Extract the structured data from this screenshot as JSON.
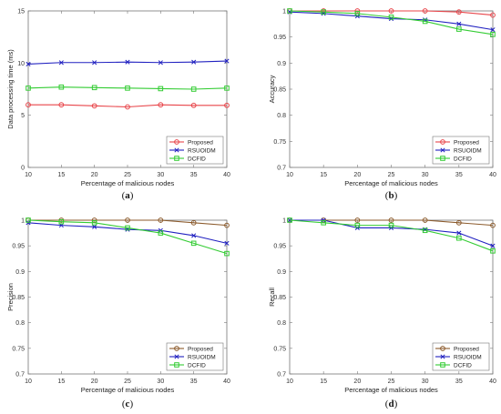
{
  "chart_data": [
    {
      "type": "line",
      "caption": "a",
      "xlabel": "Percentage of malicious nodes",
      "ylabel": "Data processing time (ms)",
      "x": [
        10,
        15,
        20,
        25,
        30,
        35,
        40
      ],
      "xticks": [
        "10",
        "15",
        "20",
        "25",
        "30",
        "35",
        "40"
      ],
      "ylim": [
        0,
        15
      ],
      "yticks": [
        "0",
        "5",
        "10",
        "15"
      ],
      "ytick_values": [
        0,
        5,
        10,
        15
      ],
      "legend_position": "bottom-right",
      "series": [
        {
          "name": "Proposed",
          "color": "#e8454a",
          "marker": "circle",
          "values": [
            6.0,
            6.0,
            5.9,
            5.8,
            6.0,
            5.95,
            5.95
          ]
        },
        {
          "name": "RSUOIDM",
          "color": "#2020c0",
          "marker": "x",
          "values": [
            9.9,
            10.05,
            10.05,
            10.1,
            10.05,
            10.1,
            10.2
          ]
        },
        {
          "name": "DCFID",
          "color": "#33cc33",
          "marker": "square",
          "values": [
            7.6,
            7.7,
            7.65,
            7.6,
            7.55,
            7.5,
            7.6
          ]
        }
      ]
    },
    {
      "type": "line",
      "caption": "b",
      "xlabel": "Percentage of malicious nodes",
      "ylabel": "Accuracy",
      "x": [
        10,
        15,
        20,
        25,
        30,
        35,
        40
      ],
      "xticks": [
        "10",
        "15",
        "20",
        "25",
        "30",
        "35",
        "40"
      ],
      "ylim": [
        0.7,
        1.0
      ],
      "yticks": [
        "0.7",
        "0.75",
        "0.8",
        "0.85",
        "0.9",
        "0.95",
        "1"
      ],
      "ytick_values": [
        0.7,
        0.75,
        0.8,
        0.85,
        0.9,
        0.95,
        1.0
      ],
      "legend_position": "bottom-right",
      "series": [
        {
          "name": "Proposed",
          "color": "#e8454a",
          "marker": "circle",
          "values": [
            1.0,
            1.0,
            1.0,
            1.0,
            1.0,
            0.998,
            0.992
          ]
        },
        {
          "name": "RSUOIDM",
          "color": "#2020c0",
          "marker": "x",
          "values": [
            0.998,
            0.995,
            0.99,
            0.985,
            0.983,
            0.975,
            0.964
          ]
        },
        {
          "name": "DCFID",
          "color": "#33cc33",
          "marker": "square",
          "values": [
            1.0,
            0.998,
            0.995,
            0.988,
            0.98,
            0.965,
            0.955
          ]
        }
      ]
    },
    {
      "type": "line",
      "caption": "c",
      "xlabel": "Percentage of malicious nodes",
      "ylabel": "Precision",
      "x": [
        10,
        15,
        20,
        25,
        30,
        35,
        40
      ],
      "xticks": [
        "10",
        "15",
        "20",
        "25",
        "30",
        "35",
        "40"
      ],
      "ylim": [
        0.7,
        1.0
      ],
      "yticks": [
        "0.7",
        "0.75",
        "0.8",
        "0.85",
        "0.9",
        "0.95",
        "1"
      ],
      "ytick_values": [
        0.7,
        0.75,
        0.8,
        0.85,
        0.9,
        0.95,
        1.0
      ],
      "legend_position": "bottom-right",
      "series": [
        {
          "name": "Proposed",
          "color": "#8b5a2b",
          "marker": "circle",
          "values": [
            1.0,
            1.0,
            1.0,
            1.0,
            1.0,
            0.995,
            0.99
          ]
        },
        {
          "name": "RSUOIDM",
          "color": "#2020c0",
          "marker": "x",
          "values": [
            0.995,
            0.99,
            0.987,
            0.982,
            0.98,
            0.97,
            0.955
          ]
        },
        {
          "name": "DCFID",
          "color": "#33cc33",
          "marker": "square",
          "values": [
            1.0,
            0.997,
            0.995,
            0.985,
            0.975,
            0.955,
            0.935
          ]
        }
      ]
    },
    {
      "type": "line",
      "caption": "d",
      "xlabel": "Percentage of malicious nodes",
      "ylabel": "Recall",
      "x": [
        10,
        15,
        20,
        25,
        30,
        35,
        40
      ],
      "xticks": [
        "10",
        "15",
        "20",
        "25",
        "30",
        "35",
        "40"
      ],
      "ylim": [
        0.7,
        1.0
      ],
      "yticks": [
        "0.7",
        "0.75",
        "0.8",
        "0.85",
        "0.9",
        "0.95",
        "1"
      ],
      "ytick_values": [
        0.7,
        0.75,
        0.8,
        0.85,
        0.9,
        0.95,
        1.0
      ],
      "legend_position": "bottom-right",
      "series": [
        {
          "name": "Proposed",
          "color": "#8b5a2b",
          "marker": "circle",
          "values": [
            1.0,
            1.0,
            1.0,
            1.0,
            1.0,
            0.995,
            0.99
          ]
        },
        {
          "name": "RSUOIDM",
          "color": "#2020c0",
          "marker": "x",
          "values": [
            1.0,
            1.0,
            0.985,
            0.985,
            0.982,
            0.975,
            0.95
          ]
        },
        {
          "name": "DCFID",
          "color": "#33cc33",
          "marker": "square",
          "values": [
            1.0,
            0.995,
            0.99,
            0.99,
            0.98,
            0.965,
            0.94
          ]
        }
      ]
    }
  ]
}
